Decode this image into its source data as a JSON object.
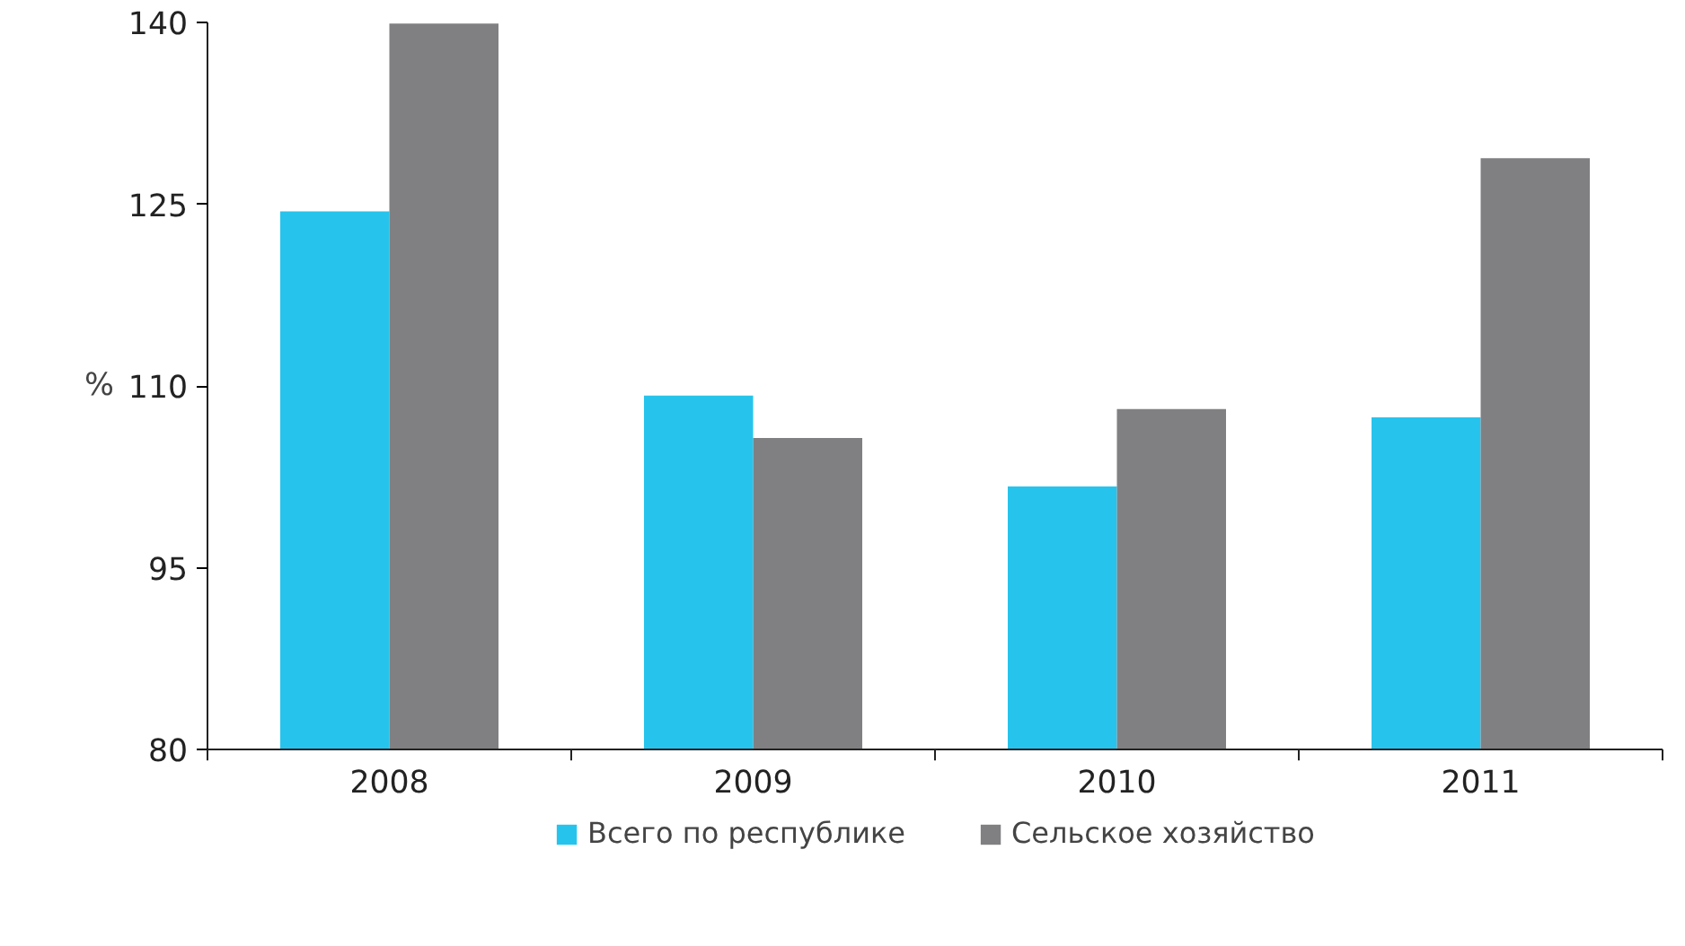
{
  "chart_data": {
    "type": "bar",
    "ylabel": "%",
    "categories": [
      "2008",
      "2009",
      "2010",
      "2011"
    ],
    "series": [
      {
        "name": "Всего по республике",
        "color": "#26c4ec",
        "values": [
          124.4,
          109.2,
          101.7,
          107.4
        ]
      },
      {
        "name": "Сельское хозяйство",
        "color": "#808083",
        "values": [
          139.9,
          105.7,
          108.1,
          128.8
        ]
      }
    ],
    "ylim": [
      80,
      140
    ],
    "yticks": [
      80,
      95,
      110,
      125,
      140
    ],
    "grid": false,
    "legend": "bottom"
  }
}
